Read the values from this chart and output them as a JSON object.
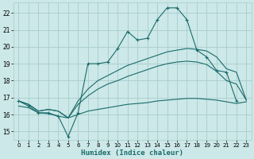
{
  "xlabel": "Humidex (Indice chaleur)",
  "xlim": [
    -0.5,
    23.5
  ],
  "ylim": [
    14.5,
    22.6
  ],
  "xticks": [
    0,
    1,
    2,
    3,
    4,
    5,
    6,
    7,
    8,
    9,
    10,
    11,
    12,
    13,
    14,
    15,
    16,
    17,
    18,
    19,
    20,
    21,
    22,
    23
  ],
  "yticks": [
    15,
    16,
    17,
    18,
    19,
    20,
    21,
    22
  ],
  "bg_color": "#cce8e8",
  "grid_color": "#aacccc",
  "line_color": "#1a6b6b",
  "x": [
    0,
    1,
    2,
    3,
    4,
    5,
    6,
    7,
    8,
    9,
    10,
    11,
    12,
    13,
    14,
    15,
    16,
    17,
    18,
    19,
    20,
    21,
    22,
    23
  ],
  "line_jagged": [
    16.8,
    16.5,
    16.1,
    16.1,
    15.9,
    14.7,
    16.1,
    19.0,
    19.0,
    19.1,
    19.9,
    20.9,
    20.4,
    20.5,
    21.6,
    22.3,
    22.3,
    21.6,
    19.8,
    19.4,
    18.6,
    18.5,
    16.8,
    null
  ],
  "line_upper": [
    16.8,
    16.6,
    16.2,
    16.3,
    16.2,
    15.8,
    16.8,
    17.5,
    18.0,
    18.3,
    18.6,
    18.9,
    19.1,
    19.3,
    19.5,
    19.7,
    19.8,
    19.9,
    19.85,
    19.75,
    19.4,
    18.7,
    18.5,
    16.85
  ],
  "line_mid": [
    16.8,
    16.6,
    16.2,
    16.3,
    16.2,
    15.8,
    16.6,
    17.1,
    17.5,
    17.8,
    18.0,
    18.25,
    18.45,
    18.65,
    18.85,
    19.0,
    19.1,
    19.15,
    19.1,
    18.95,
    18.55,
    18.0,
    17.8,
    16.85
  ],
  "line_lower": [
    16.5,
    16.4,
    16.1,
    16.05,
    15.9,
    15.8,
    16.0,
    16.2,
    16.3,
    16.4,
    16.5,
    16.6,
    16.65,
    16.7,
    16.8,
    16.85,
    16.9,
    16.95,
    16.95,
    16.9,
    16.85,
    16.75,
    16.65,
    16.75
  ]
}
